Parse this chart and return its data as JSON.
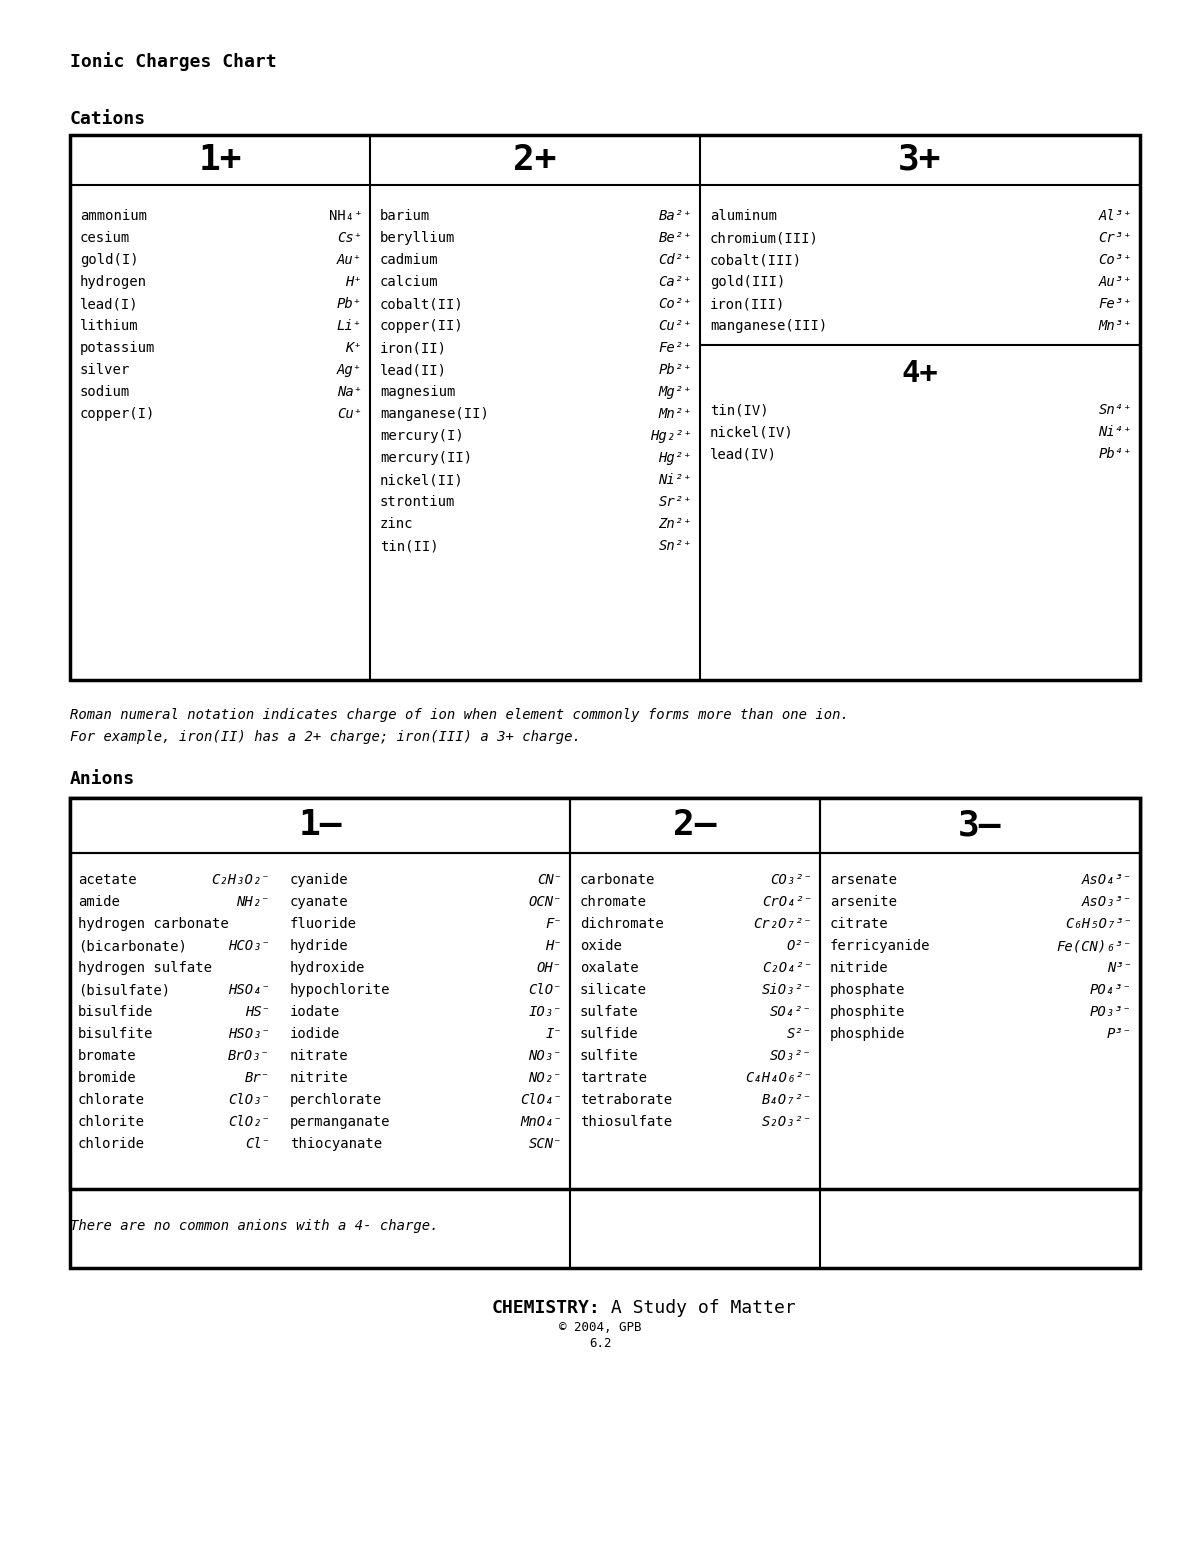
{
  "title": "Ionic Charges Chart",
  "cations_label": "Cations",
  "anions_label": "Anions",
  "cation_col1_header": "1+",
  "cation_col2_header": "2+",
  "cation_col3_header": "3+",
  "cation_col4_header": "4+",
  "anion_col1_header": "1–",
  "anion_col2_header": "2–",
  "anion_col3_header": "3–",
  "cation_1plus": [
    [
      "ammonium",
      "NH₄⁺",
      false
    ],
    [
      "cesium",
      "Cs⁺",
      true
    ],
    [
      "gold(I)",
      "Au⁺",
      true
    ],
    [
      "hydrogen",
      "H⁺",
      true
    ],
    [
      "lead(I)",
      "Pb⁺",
      true
    ],
    [
      "lithium",
      "Li⁺",
      true
    ],
    [
      "potassium",
      "K⁺",
      true
    ],
    [
      "silver",
      "Ag⁺",
      true
    ],
    [
      "sodium",
      "Na⁺",
      true
    ],
    [
      "copper(I)",
      "Cu⁺",
      true
    ]
  ],
  "cation_2plus": [
    [
      "barium",
      "Ba²⁺",
      true
    ],
    [
      "beryllium",
      "Be²⁺",
      true
    ],
    [
      "cadmium",
      "Cd²⁺",
      true
    ],
    [
      "calcium",
      "Ca²⁺",
      true
    ],
    [
      "cobalt(II)",
      "Co²⁺",
      true
    ],
    [
      "copper(II)",
      "Cu²⁺",
      true
    ],
    [
      "iron(II)",
      "Fe²⁺",
      true
    ],
    [
      "lead(II)",
      "Pb²⁺",
      true
    ],
    [
      "magnesium",
      "Mg²⁺",
      true
    ],
    [
      "manganese(II)",
      "Mn²⁺",
      true
    ],
    [
      "mercury(I)",
      "Hg₂²⁺",
      true
    ],
    [
      "mercury(II)",
      "Hg²⁺",
      true
    ],
    [
      "nickel(II)",
      "Ni²⁺",
      true
    ],
    [
      "strontium",
      "Sr²⁺",
      true
    ],
    [
      "zinc",
      "Zn²⁺",
      true
    ],
    [
      "tin(II)",
      "Sn²⁺",
      true
    ]
  ],
  "cation_3plus": [
    [
      "aluminum",
      "Al³⁺",
      true
    ],
    [
      "chromium(III)",
      "Cr³⁺",
      true
    ],
    [
      "cobalt(III)",
      "Co³⁺",
      true
    ],
    [
      "gold(III)",
      "Au³⁺",
      true
    ],
    [
      "iron(III)",
      "Fe³⁺",
      true
    ],
    [
      "manganese(III)",
      "Mn³⁺",
      true
    ]
  ],
  "cation_4plus": [
    [
      "tin(IV)",
      "Sn⁴⁺",
      true
    ],
    [
      "nickel(IV)",
      "Ni⁴⁺",
      true
    ],
    [
      "lead(IV)",
      "Pb⁴⁺",
      true
    ]
  ],
  "anion_1minus_left": [
    [
      "acetate",
      "C₂H₃O₂⁻"
    ],
    [
      "amide",
      "NH₂⁻"
    ],
    [
      "hydrogen carbonate",
      ""
    ],
    [
      "(bicarbonate)",
      "HCO₃⁻"
    ],
    [
      "hydrogen sulfate",
      ""
    ],
    [
      "(bisulfate)",
      "HSO₄⁻"
    ],
    [
      "bisulfide",
      "HS⁻"
    ],
    [
      "bisulfite",
      "HSO₃⁻"
    ],
    [
      "bromate",
      "BrO₃⁻"
    ],
    [
      "bromide",
      "Br⁻"
    ],
    [
      "chlorate",
      "ClO₃⁻"
    ],
    [
      "chlorite",
      "ClO₂⁻"
    ],
    [
      "chloride",
      "Cl⁻"
    ]
  ],
  "anion_1minus_right": [
    [
      "cyanide",
      "CN⁻"
    ],
    [
      "cyanate",
      "OCN⁻"
    ],
    [
      "fluoride",
      "F⁻"
    ],
    [
      "hydride",
      "H⁻"
    ],
    [
      "hydroxide",
      "OH⁻"
    ],
    [
      "hypochlorite",
      "ClO⁻"
    ],
    [
      "iodate",
      "IO₃⁻"
    ],
    [
      "iodide",
      "I⁻"
    ],
    [
      "nitrate",
      "NO₃⁻"
    ],
    [
      "nitrite",
      "NO₂⁻"
    ],
    [
      "perchlorate",
      "ClO₄⁻"
    ],
    [
      "permanganate",
      "MnO₄⁻"
    ],
    [
      "thiocyanate",
      "SCN⁻"
    ]
  ],
  "anion_2minus": [
    [
      "carbonate",
      "CO₃²⁻"
    ],
    [
      "chromate",
      "CrO₄²⁻"
    ],
    [
      "dichromate",
      "Cr₂O₇²⁻"
    ],
    [
      "oxide",
      "O²⁻"
    ],
    [
      "oxalate",
      "C₂O₄²⁻"
    ],
    [
      "silicate",
      "SiO₃²⁻"
    ],
    [
      "sulfate",
      "SO₄²⁻"
    ],
    [
      "sulfide",
      "S²⁻"
    ],
    [
      "sulfite",
      "SO₃²⁻"
    ],
    [
      "tartrate",
      "C₄H₄O₆²⁻"
    ],
    [
      "tetraborate",
      "B₄O₇²⁻"
    ],
    [
      "thiosulfate",
      "S₂O₃²⁻"
    ]
  ],
  "anion_3minus": [
    [
      "arsenate",
      "AsO₄³⁻"
    ],
    [
      "arsenite",
      "AsO₃³⁻"
    ],
    [
      "citrate",
      "C₆H₅O₇³⁻"
    ],
    [
      "ferricyanide",
      "Fe(CN)₆³⁻"
    ],
    [
      "nitride",
      "N³⁻"
    ],
    [
      "phosphate",
      "PO₄³⁻"
    ],
    [
      "phosphite",
      "PO₃³⁻"
    ],
    [
      "phosphide",
      "P³⁻"
    ]
  ],
  "note1": "Roman numeral notation indicates charge of ion when element commonly forms more than one ion.",
  "note2": "For example, iron(II) has a 2+ charge; iron(III) a 3+ charge.",
  "note3": "There are no common anions with a 4- charge.",
  "footer_bold": "CHEMISTRY:",
  "footer_normal": " A Study of Matter",
  "footer_copy": "© 2004, GPB",
  "footer_page": "6.2"
}
